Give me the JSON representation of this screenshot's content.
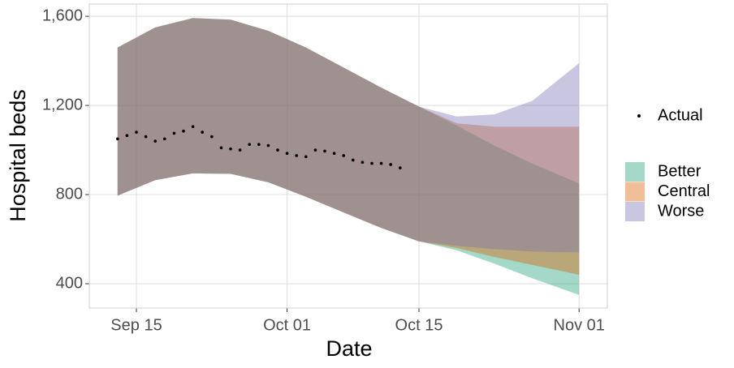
{
  "chart_data": {
    "type": "ribbon",
    "xlabel": "Date",
    "ylabel": "Hospital beds",
    "xlim": [
      "Sep 10",
      "Nov 04"
    ],
    "ylim": [
      291,
      1655
    ],
    "xticks": [
      "Sep 15",
      "Oct 01",
      "Oct 15",
      "Nov 01"
    ],
    "yticks": [
      {
        "value": 400,
        "label": "400"
      },
      {
        "value": 800,
        "label": "800"
      },
      {
        "value": 1200,
        "label": "1,200"
      },
      {
        "value": 1600,
        "label": "1,600"
      }
    ],
    "grid": true,
    "ribbons": [
      {
        "name": "Better",
        "color": "#1b9e77",
        "x": [
          "Sep 13",
          "Sep 17",
          "Sep 21",
          "Sep 25",
          "Sep 29",
          "Oct 03",
          "Oct 07",
          "Oct 11",
          "Oct 15",
          "Oct 19",
          "Oct 23",
          "Oct 27",
          "Nov 01"
        ],
        "upper": [
          1460,
          1550,
          1592,
          1585,
          1535,
          1460,
          1370,
          1280,
          1195,
          1110,
          1020,
          940,
          850
        ],
        "lower": [
          795,
          865,
          895,
          893,
          855,
          790,
          720,
          650,
          590,
          550,
          490,
          425,
          350
        ]
      },
      {
        "name": "Central",
        "color": "#d95f02",
        "x": [
          "Sep 13",
          "Sep 17",
          "Sep 21",
          "Sep 25",
          "Sep 29",
          "Oct 03",
          "Oct 07",
          "Oct 11",
          "Oct 15",
          "Oct 19",
          "Oct 23",
          "Oct 27",
          "Nov 01"
        ],
        "upper": [
          1460,
          1550,
          1592,
          1585,
          1535,
          1460,
          1370,
          1280,
          1195,
          1120,
          1105,
          1105,
          1105
        ],
        "lower": [
          795,
          865,
          895,
          893,
          855,
          790,
          720,
          650,
          590,
          560,
          520,
          485,
          440
        ]
      },
      {
        "name": "Worse",
        "color": "#7570b3",
        "x": [
          "Sep 13",
          "Sep 17",
          "Sep 21",
          "Sep 25",
          "Sep 29",
          "Oct 03",
          "Oct 07",
          "Oct 11",
          "Oct 15",
          "Oct 19",
          "Oct 23",
          "Oct 27",
          "Nov 01"
        ],
        "upper": [
          1460,
          1550,
          1592,
          1585,
          1535,
          1460,
          1370,
          1280,
          1195,
          1150,
          1160,
          1220,
          1390
        ],
        "lower": [
          795,
          865,
          895,
          893,
          855,
          790,
          720,
          650,
          590,
          570,
          555,
          545,
          540
        ]
      }
    ],
    "points": {
      "name": "Actual",
      "color": "#000000",
      "x": [
        "Sep 13",
        "Sep 14",
        "Sep 15",
        "Sep 16",
        "Sep 17",
        "Sep 18",
        "Sep 19",
        "Sep 20",
        "Sep 21",
        "Sep 22",
        "Sep 23",
        "Sep 24",
        "Sep 25",
        "Sep 26",
        "Sep 27",
        "Sep 28",
        "Sep 29",
        "Sep 30",
        "Oct 01",
        "Oct 02",
        "Oct 03",
        "Oct 04",
        "Oct 05",
        "Oct 06",
        "Oct 07",
        "Oct 08",
        "Oct 09",
        "Oct 10",
        "Oct 11",
        "Oct 12",
        "Oct 13"
      ],
      "values": [
        1050,
        1065,
        1080,
        1060,
        1040,
        1050,
        1075,
        1085,
        1105,
        1080,
        1060,
        1010,
        1005,
        1000,
        1025,
        1025,
        1020,
        1000,
        985,
        975,
        970,
        1000,
        995,
        985,
        975,
        955,
        945,
        940,
        940,
        935,
        920
      ]
    }
  }
}
